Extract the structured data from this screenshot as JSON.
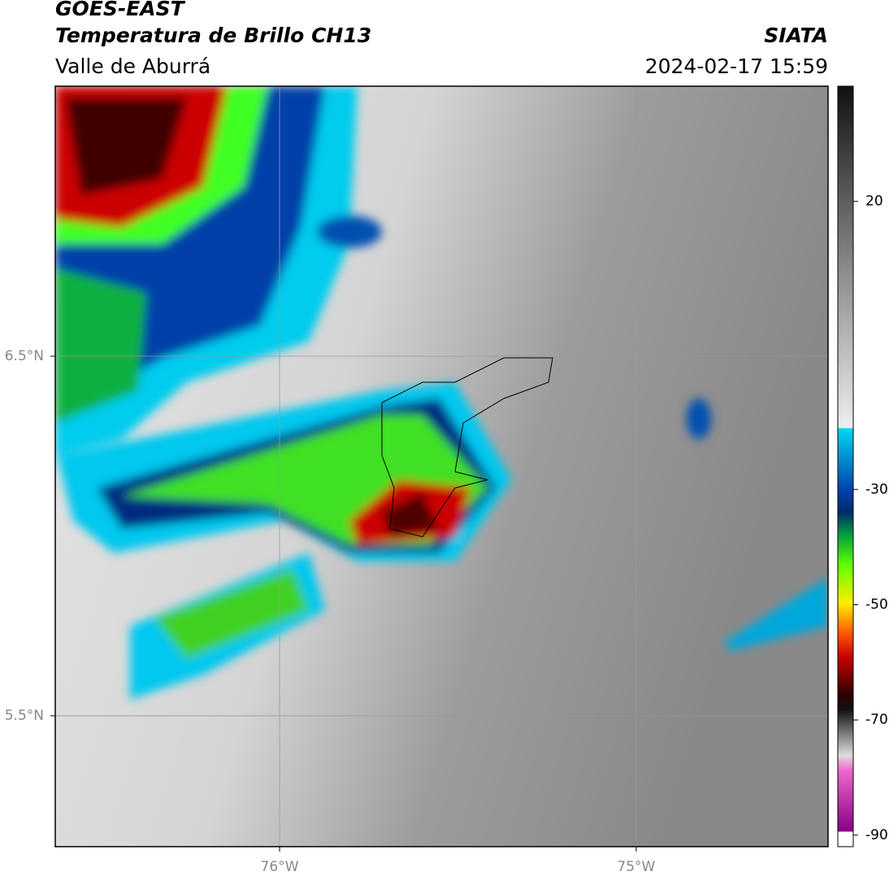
{
  "header": {
    "title": "GOES-EAST",
    "subtitle": "Temperatura de Brillo CH13",
    "source": "SIATA",
    "region": "Valle de Aburrá",
    "datetime": "2024-02-17 15:59"
  },
  "map": {
    "lonlim": [
      -76.629,
      -74.462
    ],
    "latlim": [
      5.136,
      7.251
    ],
    "lon_ticks": [
      {
        "value": -76,
        "label": "76°W"
      },
      {
        "value": -75,
        "label": "75°W"
      }
    ],
    "lat_ticks": [
      {
        "value": 6.5,
        "label": "6.5°N"
      },
      {
        "value": 5.5,
        "label": "5.5°N"
      }
    ],
    "grid": true
  },
  "colorbar": {
    "lim": [
      -92,
      40
    ],
    "ticks": [
      20,
      -30,
      -50,
      -70,
      -90
    ]
  }
}
